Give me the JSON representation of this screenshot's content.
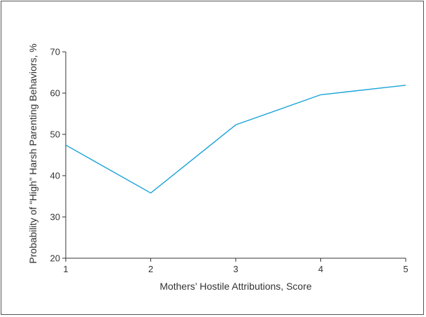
{
  "chart_data": {
    "type": "line",
    "title": "",
    "xlabel": "Mothers’ Hostile Attributions, Score",
    "ylabel": "Probability of “High” Harsh Parenting Behaviors, %",
    "x": [
      1,
      2,
      3,
      4,
      5
    ],
    "xticks": [
      "1",
      "2",
      "3",
      "4",
      "5"
    ],
    "yticks": [
      "20",
      "30",
      "40",
      "50",
      "60",
      "70"
    ],
    "xlim": [
      1,
      5
    ],
    "ylim": [
      20,
      70
    ],
    "grid": false,
    "legend": "none",
    "series": [
      {
        "values": [
          47.4,
          35.8,
          52.3,
          59.6,
          61.9
        ],
        "color": "#1aa3d9"
      }
    ]
  }
}
